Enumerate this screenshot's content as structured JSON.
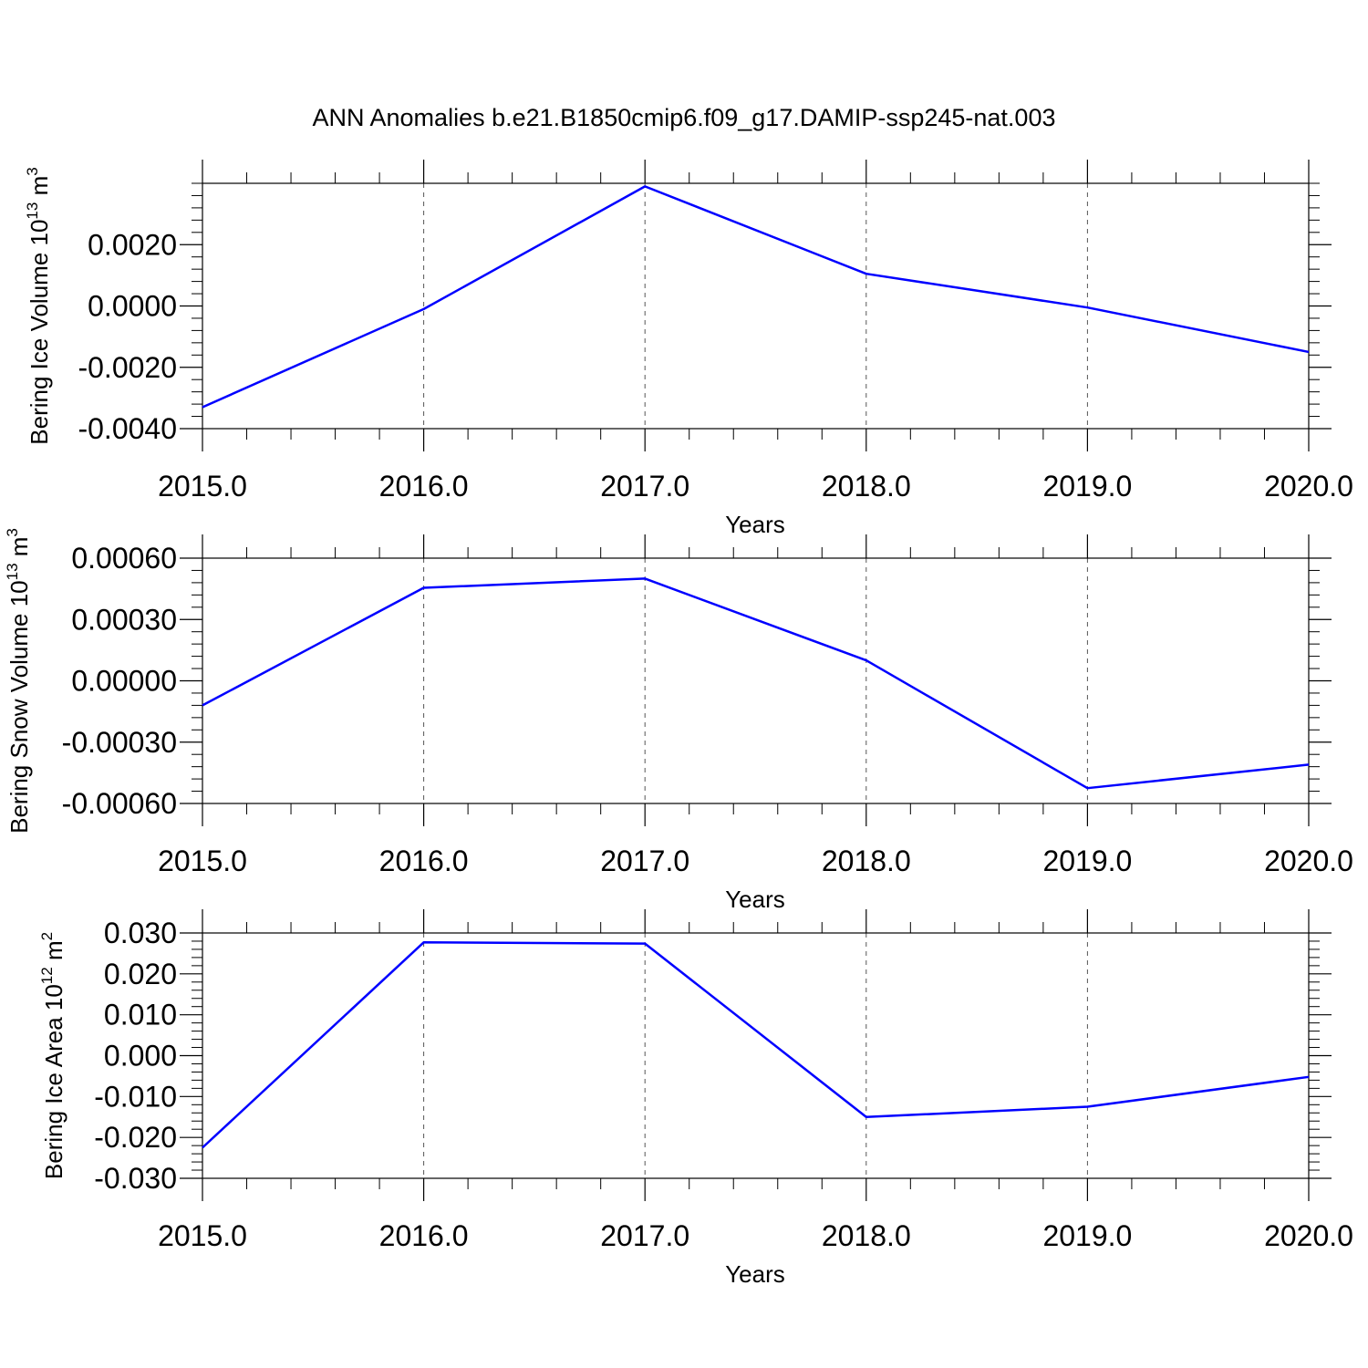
{
  "title": "ANN Anomalies b.e21.B1850cmip6.f09_g17.DAMIP-ssp245-nat.003",
  "colors": {
    "line": "#0000ff",
    "axis": "#000000",
    "grid": "#555555",
    "background": "#ffffff"
  },
  "chart_data": [
    {
      "type": "line",
      "x": [
        2015,
        2016,
        2017,
        2018,
        2019,
        2020
      ],
      "series": [
        {
          "values": [
            -0.0033,
            -0.0001,
            0.0039,
            0.00105,
            -5e-05,
            -0.0015
          ]
        }
      ],
      "xlabel": "Years",
      "ylabel": {
        "text": "Bering Ice Volume 10",
        "exponent": "13",
        "unit": "m",
        "unit_exponent": "3"
      },
      "xlim": [
        2015,
        2020
      ],
      "ylim": [
        -0.004,
        0.004
      ],
      "xticks": [
        2015,
        2016,
        2017,
        2018,
        2019,
        2020
      ],
      "xtick_labels": [
        "2015.0",
        "2016.0",
        "2017.0",
        "2018.0",
        "2019.0",
        "2020.0"
      ],
      "yticks": [
        -0.004,
        -0.002,
        0.0,
        0.002
      ],
      "ytick_labels": [
        "-0.0040",
        "-0.0020",
        "0.0000",
        "0.0020"
      ],
      "grid": "vertical-dashed"
    },
    {
      "type": "line",
      "x": [
        2015,
        2016,
        2017,
        2018,
        2019,
        2020
      ],
      "series": [
        {
          "values": [
            -0.00012,
            0.000455,
            0.0005,
            0.0001,
            -0.000525,
            -0.00041
          ]
        }
      ],
      "xlabel": "Years",
      "ylabel": {
        "text": "Bering Snow Volume 10",
        "exponent": "13",
        "unit": "m",
        "unit_exponent": "3"
      },
      "xlim": [
        2015,
        2020
      ],
      "ylim": [
        -0.0006,
        0.0006
      ],
      "xticks": [
        2015,
        2016,
        2017,
        2018,
        2019,
        2020
      ],
      "xtick_labels": [
        "2015.0",
        "2016.0",
        "2017.0",
        "2018.0",
        "2019.0",
        "2020.0"
      ],
      "yticks": [
        -0.0006,
        -0.0003,
        0.0,
        0.0003,
        0.0006
      ],
      "ytick_labels": [
        "-0.00060",
        "-0.00030",
        "0.00000",
        "0.00030",
        "0.00060"
      ],
      "grid": "vertical-dashed"
    },
    {
      "type": "line",
      "x": [
        2015,
        2016,
        2017,
        2018,
        2019,
        2020
      ],
      "series": [
        {
          "values": [
            -0.0225,
            0.0277,
            0.0274,
            -0.015,
            -0.0125,
            -0.0052
          ]
        }
      ],
      "xlabel": "Years",
      "ylabel": {
        "text": "Bering Ice Area 10",
        "exponent": "12",
        "unit": "m",
        "unit_exponent": "2"
      },
      "xlim": [
        2015,
        2020
      ],
      "ylim": [
        -0.03,
        0.03
      ],
      "xticks": [
        2015,
        2016,
        2017,
        2018,
        2019,
        2020
      ],
      "xtick_labels": [
        "2015.0",
        "2016.0",
        "2017.0",
        "2018.0",
        "2019.0",
        "2020.0"
      ],
      "yticks": [
        -0.03,
        -0.02,
        -0.01,
        0.0,
        0.01,
        0.02,
        0.03
      ],
      "ytick_labels": [
        "-0.030",
        "-0.020",
        "-0.010",
        "0.000",
        "0.010",
        "0.020",
        "0.030"
      ],
      "grid": "vertical-dashed"
    }
  ]
}
